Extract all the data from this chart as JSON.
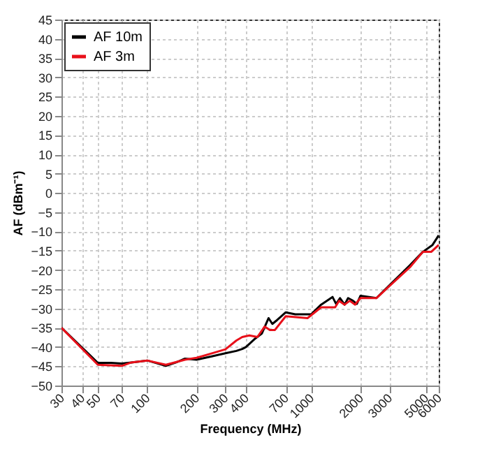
{
  "chart_data": {
    "type": "line",
    "xlabel": "Frequency (MHz)",
    "ylabel": "AF (dBm⁻¹)",
    "log": "x",
    "grid": true,
    "legend": "top left",
    "line_style": "solid",
    "marker": "none",
    "xlim": [
      30,
      6000
    ],
    "xticks": [
      30,
      40,
      50,
      70,
      100,
      200,
      300,
      400,
      700,
      1000,
      2000,
      3000,
      5000,
      6000
    ],
    "ylim": [
      -50,
      45
    ],
    "yticks": [
      -50,
      -45,
      -40,
      -35,
      -30,
      -25,
      -20,
      -15,
      -10,
      -5,
      0,
      5,
      10,
      15,
      20,
      25,
      30,
      35,
      40,
      45
    ],
    "series": [
      {
        "name": "AF 10m",
        "color": "#000000",
        "x": [
          30,
          50,
          60,
          70,
          80,
          100,
          110,
          130,
          150,
          170,
          200,
          250,
          300,
          350,
          380,
          400,
          450,
          500,
          550,
          580,
          620,
          700,
          800,
          1000,
          1150,
          1350,
          1420,
          1500,
          1600,
          1680,
          1800,
          1900,
          2000,
          2500,
          3000,
          4000,
          4800,
          5500,
          6000
        ],
        "values": [
          -35,
          -44.1,
          -44.1,
          -44.3,
          -44,
          -43.5,
          -44,
          -44.9,
          -44,
          -43,
          -43.3,
          -42.4,
          -41.6,
          -41,
          -40.5,
          -40,
          -38,
          -36.5,
          -32.5,
          -34,
          -33,
          -31,
          -31.5,
          -31.5,
          -29,
          -27,
          -28.8,
          -27.3,
          -29,
          -27.3,
          -28,
          -28.8,
          -26.7,
          -27.3,
          -24,
          -18.8,
          -15.3,
          -13.5,
          -11
        ]
      },
      {
        "name": "AF 3m",
        "color": "#e8101a",
        "x": [
          30,
          50,
          70,
          80,
          100,
          130,
          170,
          200,
          250,
          300,
          350,
          380,
          420,
          470,
          520,
          560,
          600,
          700,
          950,
          1150,
          1400,
          1480,
          1600,
          1720,
          1850,
          2000,
          2500,
          3000,
          4000,
          4800,
          5400,
          6000
        ],
        "values": [
          -35,
          -44.6,
          -44.9,
          -44,
          -43.5,
          -44.6,
          -43.3,
          -42.8,
          -41.6,
          -40.6,
          -38.3,
          -37.4,
          -37,
          -37.4,
          -34.7,
          -35.6,
          -35.6,
          -32,
          -32.5,
          -29.7,
          -29.7,
          -28,
          -29,
          -28,
          -29,
          -27.3,
          -27.3,
          -24.2,
          -19.3,
          -15.3,
          -15.3,
          -13.5
        ]
      }
    ]
  }
}
